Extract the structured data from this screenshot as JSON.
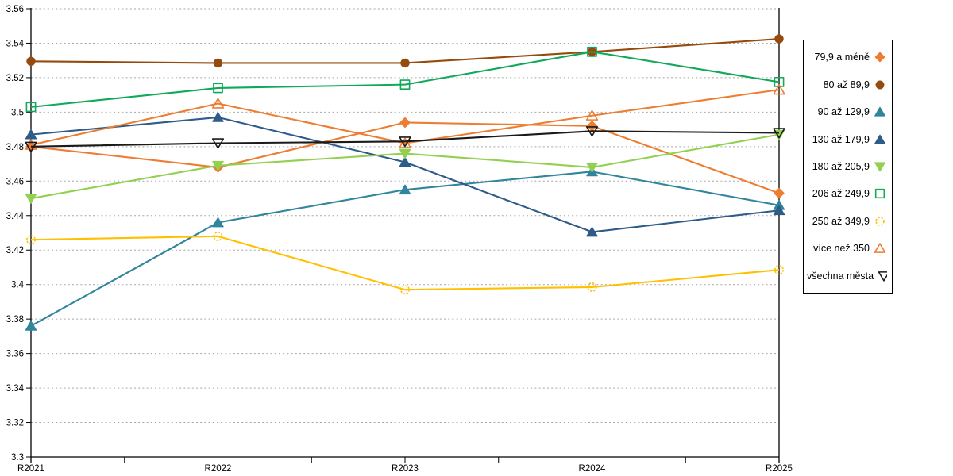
{
  "chart_data": {
    "type": "line",
    "title": "",
    "xlabel": "",
    "ylabel": "",
    "categories": [
      "R2021",
      "R2022",
      "R2023",
      "R2024",
      "R2025"
    ],
    "ylim": [
      3.3,
      3.56
    ],
    "yticks": [
      "3.3",
      "3.32",
      "3.34",
      "3.36",
      "3.38",
      "3.4",
      "3.42",
      "3.44",
      "3.46",
      "3.48",
      "3.5",
      "3.52",
      "3.54",
      "3.56"
    ],
    "grid": true,
    "legend_position": "right",
    "series": [
      {
        "name": "79,9 a méně",
        "marker": "diamond",
        "filled": true,
        "dashed_marker": false,
        "color": "#ED7D31",
        "values": [
          3.48,
          3.468,
          3.494,
          3.492,
          3.453
        ]
      },
      {
        "name": "80 až 89,9",
        "marker": "circle",
        "filled": true,
        "dashed_marker": false,
        "color": "#964B0E",
        "values": [
          3.5295,
          3.5285,
          3.5285,
          3.535,
          3.5425
        ]
      },
      {
        "name": "90 až 129,9",
        "marker": "triangle-up",
        "filled": true,
        "dashed_marker": false,
        "color": "#31859C",
        "values": [
          3.376,
          3.436,
          3.455,
          3.4655,
          3.446
        ]
      },
      {
        "name": "130 až 179,9",
        "marker": "triangle-up",
        "filled": true,
        "dashed_marker": false,
        "color": "#2E5B88",
        "values": [
          3.487,
          3.497,
          3.471,
          3.4305,
          3.443
        ]
      },
      {
        "name": "180 až 205,9",
        "marker": "triangle-down",
        "filled": true,
        "dashed_marker": false,
        "color": "#92D050",
        "values": [
          3.45,
          3.469,
          3.476,
          3.468,
          3.487
        ]
      },
      {
        "name": "206 až 249,9",
        "marker": "square",
        "filled": false,
        "dashed_marker": false,
        "color": "#10A95A",
        "values": [
          3.503,
          3.514,
          3.516,
          3.535,
          3.5175
        ]
      },
      {
        "name": "250 až 349,9",
        "marker": "circle",
        "filled": false,
        "dashed_marker": true,
        "color": "#FFC000",
        "values": [
          3.426,
          3.428,
          3.397,
          3.3985,
          3.4085
        ]
      },
      {
        "name": "více než 350",
        "marker": "triangle-up",
        "filled": false,
        "dashed_marker": false,
        "color": "#ED7D31",
        "values": [
          3.481,
          3.505,
          3.482,
          3.498,
          3.513
        ]
      },
      {
        "name": "všechna města",
        "marker": "triangle-down",
        "filled": false,
        "dashed_marker": false,
        "color": "#1A1A1A",
        "values": [
          3.48,
          3.482,
          3.483,
          3.489,
          3.488
        ]
      }
    ],
    "style": {
      "gridline_color": "#A6A6A6",
      "axis_color": "#000000",
      "background": "#FFFFFF"
    }
  }
}
